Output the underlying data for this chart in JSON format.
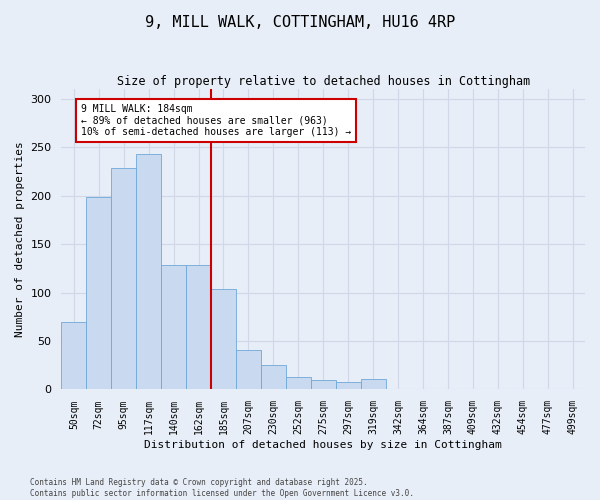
{
  "title": "9, MILL WALK, COTTINGHAM, HU16 4RP",
  "subtitle": "Size of property relative to detached houses in Cottingham",
  "xlabel": "Distribution of detached houses by size in Cottingham",
  "ylabel": "Number of detached properties",
  "categories": [
    "50sqm",
    "72sqm",
    "95sqm",
    "117sqm",
    "140sqm",
    "162sqm",
    "185sqm",
    "207sqm",
    "230sqm",
    "252sqm",
    "275sqm",
    "297sqm",
    "319sqm",
    "342sqm",
    "364sqm",
    "387sqm",
    "409sqm",
    "432sqm",
    "454sqm",
    "477sqm",
    "499sqm"
  ],
  "values": [
    70,
    199,
    229,
    243,
    129,
    129,
    104,
    41,
    25,
    13,
    10,
    8,
    11,
    0,
    1,
    0,
    0,
    0,
    0,
    0,
    1
  ],
  "bar_color": "#c9d9f0",
  "bar_edge_color": "#6ea8d8",
  "grid_color": "#d0d8e8",
  "bg_color": "#e8eef8",
  "vline_color": "#cc0000",
  "annotation_text": "9 MILL WALK: 184sqm\n← 89% of detached houses are smaller (963)\n10% of semi-detached houses are larger (113) →",
  "annotation_box_color": "#ffffff",
  "annotation_box_edge": "#cc0000",
  "footer": "Contains HM Land Registry data © Crown copyright and database right 2025.\nContains public sector information licensed under the Open Government Licence v3.0.",
  "ylim": [
    0,
    310
  ],
  "yticks": [
    0,
    50,
    100,
    150,
    200,
    250,
    300
  ]
}
